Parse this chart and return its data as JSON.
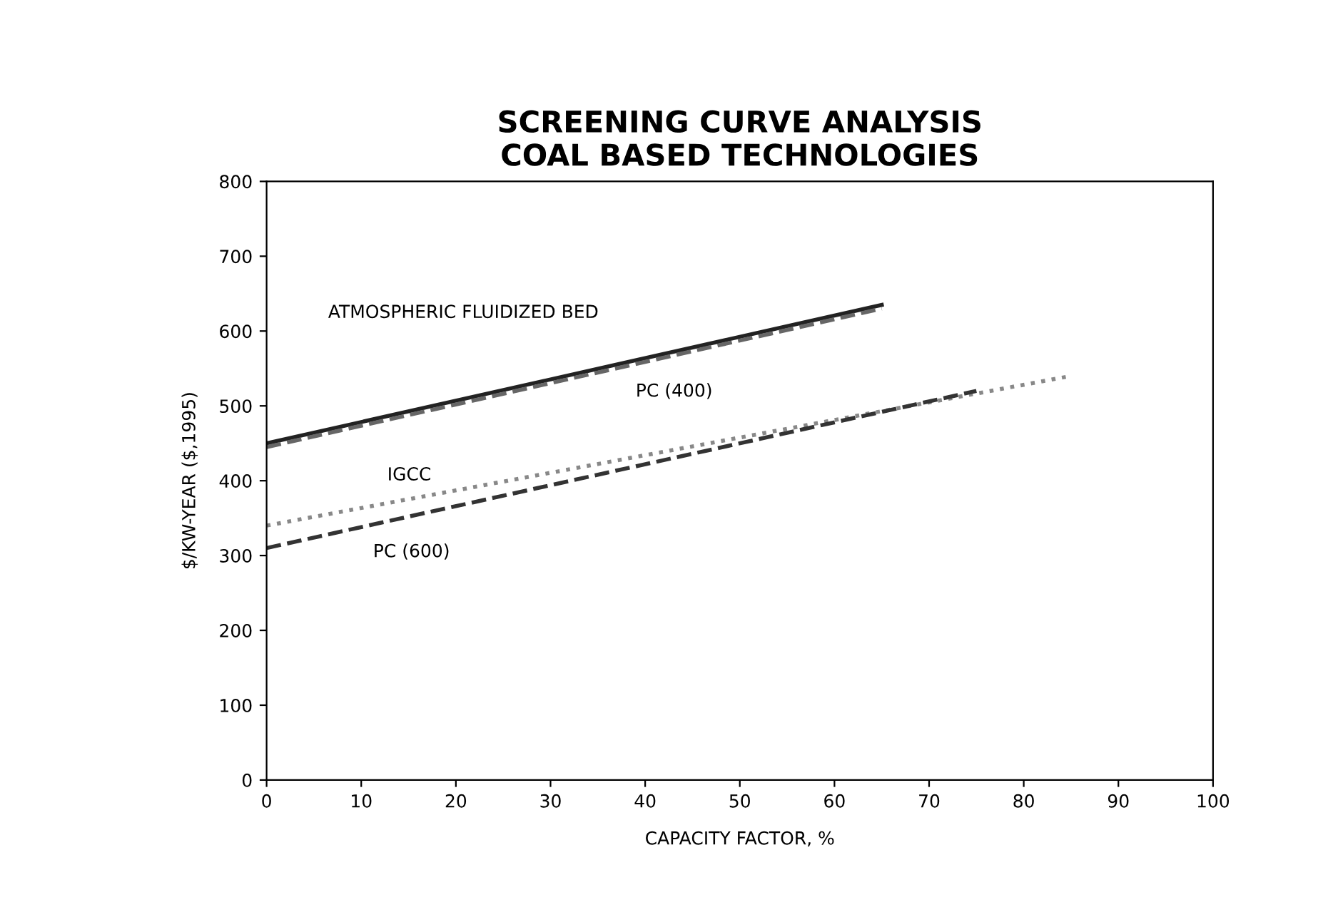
{
  "chart_data": {
    "type": "line",
    "title": "SCREENING CURVE ANALYSIS\nCOAL BASED TECHNOLOGIES",
    "xlabel": "CAPACITY FACTOR, %",
    "ylabel": "$/KW-YEAR ($,1995)",
    "series": [
      {
        "name": "ATMOSPHERIC FLUIDIZED BED",
        "x": [
          0,
          65
        ],
        "values": [
          450,
          635
        ],
        "color": "#222222",
        "line_style": "solid"
      },
      {
        "name": "PC (400)",
        "x": [
          0,
          65
        ],
        "values": [
          445,
          630
        ],
        "color": "#666666",
        "line_style": "dashed"
      },
      {
        "name": "IGCC",
        "x": [
          0,
          85
        ],
        "values": [
          340,
          540
        ],
        "color": "#888888",
        "line_style": "dotted"
      },
      {
        "name": "PC (600)",
        "x": [
          0,
          75
        ],
        "values": [
          310,
          520
        ],
        "color": "#333333",
        "line_style": "dashed"
      }
    ],
    "xlim": [
      0,
      100
    ],
    "xticks": [
      0,
      10,
      20,
      30,
      40,
      50,
      60,
      70,
      80,
      90,
      100
    ],
    "ylim": [
      0,
      800
    ],
    "yticks": [
      0,
      100,
      200,
      300,
      400,
      500,
      600,
      700,
      800
    ],
    "grid": false,
    "legend": false
  }
}
